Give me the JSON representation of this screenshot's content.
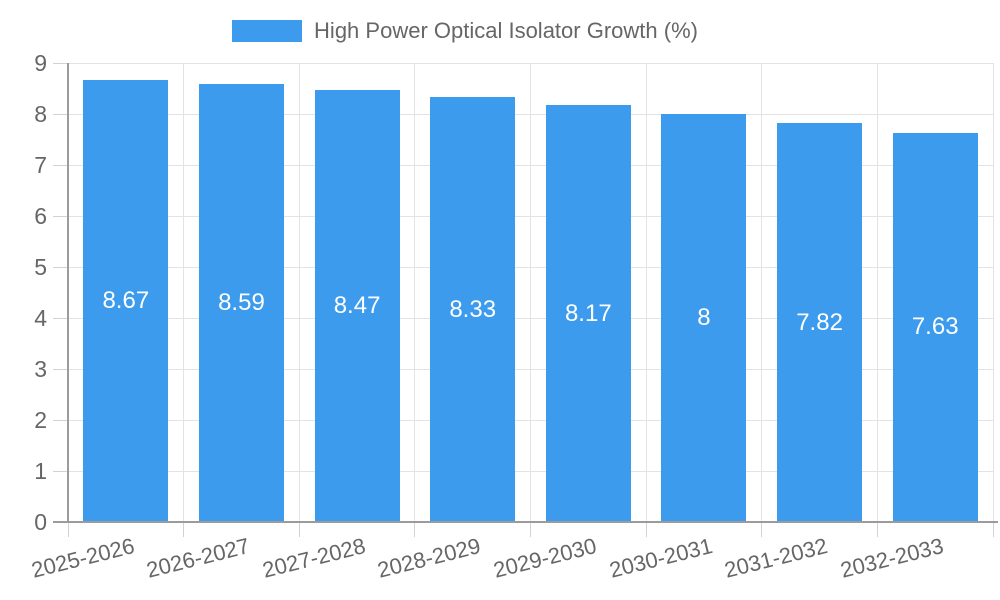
{
  "chart_data": {
    "type": "bar",
    "legend_label": "High Power Optical Isolator Growth (%)",
    "categories": [
      "2025-2026",
      "2026-2027",
      "2027-2028",
      "2028-2029",
      "2029-2030",
      "2030-2031",
      "2031-2032",
      "2032-2033"
    ],
    "values": [
      8.67,
      8.59,
      8.47,
      8.33,
      8.17,
      8,
      7.82,
      7.63
    ],
    "value_labels": [
      "8.67",
      "8.59",
      "8.47",
      "8.33",
      "8.17",
      "8",
      "7.82",
      "7.63"
    ],
    "xlabel": "",
    "ylabel": "",
    "ylim": [
      0,
      9
    ],
    "yticks": [
      "0",
      "1",
      "2",
      "3",
      "4",
      "5",
      "6",
      "7",
      "8",
      "9"
    ],
    "grid": "on",
    "legend_position": "top-center",
    "colors": {
      "bar": "#3C9BEC",
      "value_label": "#ffffff",
      "axis_text": "#666666",
      "gridline": "#e3e3e3",
      "axis_line": "#9b9b9b"
    }
  }
}
